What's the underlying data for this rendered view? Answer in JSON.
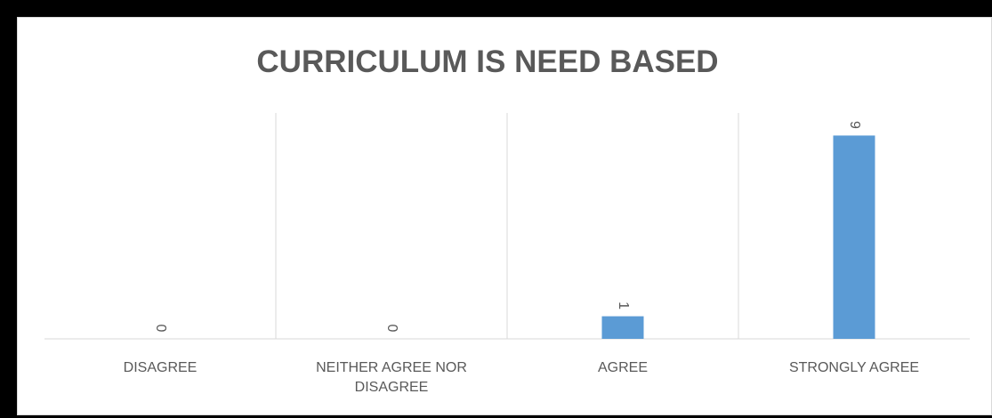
{
  "chart_data": {
    "type": "bar",
    "title": "CURRICULUM IS NEED BASED",
    "categories": [
      "DISAGREE",
      "NEITHER  AGREE NOR DISAGREE",
      "AGREE",
      "STRONGLY AGREE"
    ],
    "values": [
      0,
      0,
      1,
      9
    ],
    "data_labels": [
      "0",
      "0",
      "1",
      "9"
    ],
    "ylim": [
      0,
      10
    ],
    "grid": "vertical category separators",
    "data_label_orientation": "rotated",
    "bar_color": "#5b9bd5",
    "axis_color": "#d9d9d9",
    "label_color": "#595959"
  }
}
